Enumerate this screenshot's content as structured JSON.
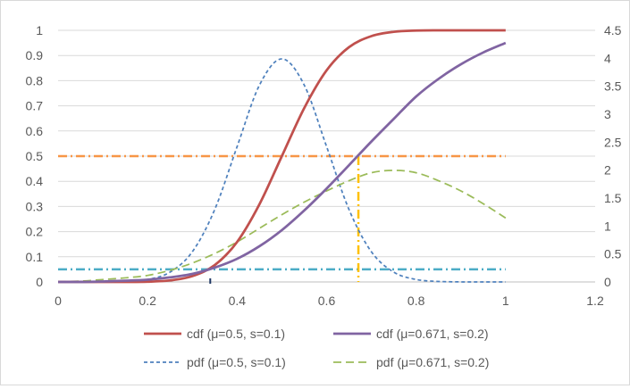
{
  "chart_data": {
    "type": "line",
    "title": "",
    "xlabel": "",
    "ylabel": "",
    "y2label": "",
    "xlim": [
      0,
      1.2
    ],
    "ylim": [
      0,
      1
    ],
    "y2lim": [
      0,
      4.5
    ],
    "xticks": [
      "0",
      "0.2",
      "0.4",
      "0.6",
      "0.8",
      "1",
      "1.2"
    ],
    "yticks": [
      "0",
      "0.1",
      "0.2",
      "0.3",
      "0.4",
      "0.5",
      "0.6",
      "0.7",
      "0.8",
      "0.9",
      "1"
    ],
    "y2ticks": [
      "0",
      "0.5",
      "1",
      "1.5",
      "2",
      "2.5",
      "3",
      "3.5",
      "4",
      "4.5"
    ],
    "grid": true,
    "legend_position": "bottom",
    "x": [
      0,
      0.05,
      0.1,
      0.15,
      0.2,
      0.25,
      0.3,
      0.35,
      0.4,
      0.45,
      0.5,
      0.55,
      0.6,
      0.65,
      0.7,
      0.75,
      0.8,
      0.85,
      0.9,
      0.95,
      1
    ],
    "series": [
      {
        "name": "cdf (μ=0.5, s=0.1)",
        "axis": "left",
        "color": "#c0504d",
        "style": "solid",
        "values": [
          0,
          0,
          0,
          0,
          0.001,
          0.006,
          0.023,
          0.067,
          0.159,
          0.309,
          0.5,
          0.691,
          0.841,
          0.933,
          0.977,
          0.994,
          0.999,
          1,
          1,
          1,
          1
        ]
      },
      {
        "name": "cdf (μ=0.671, s=0.2)",
        "axis": "left",
        "color": "#8064a2",
        "style": "solid",
        "values": [
          0,
          0,
          0.002,
          0.005,
          0.009,
          0.018,
          0.032,
          0.057,
          0.092,
          0.142,
          0.206,
          0.284,
          0.371,
          0.464,
          0.558,
          0.648,
          0.737,
          0.807,
          0.865,
          0.912,
          0.95
        ]
      },
      {
        "name": "pdf (μ=0.5, s=0.1)",
        "axis": "right",
        "color": "#4f81bd",
        "style": "short-dash",
        "values": [
          0,
          0,
          0.001,
          0.009,
          0.044,
          0.175,
          0.54,
          1.295,
          2.42,
          3.521,
          3.989,
          3.521,
          2.42,
          1.295,
          0.54,
          0.175,
          0.044,
          0.009,
          0.001,
          0,
          0
        ]
      },
      {
        "name": "pdf (μ=0.671, s=0.2)",
        "axis": "right",
        "color": "#9bbb59",
        "style": "long-dash",
        "values": [
          0.0071,
          0.0151,
          0.0429,
          0.0727,
          0.1166,
          0.2076,
          0.3383,
          0.5081,
          0.7154,
          0.9596,
          1.2032,
          1.4279,
          1.6279,
          1.8106,
          1.9534,
          1.9945,
          1.9534,
          1.8106,
          1.6279,
          1.3991,
          1.1426
        ]
      }
    ],
    "reference_lines": [
      {
        "kind": "horizontal",
        "axis": "left",
        "y": 0.5,
        "color": "#f79646",
        "style": "dash-dot"
      },
      {
        "kind": "horizontal",
        "axis": "left",
        "y": 0.05,
        "color": "#4bacc6",
        "style": "dash-dot"
      },
      {
        "kind": "vertical",
        "x": 0.671,
        "y_top": 0.5,
        "color": "#ffc000",
        "style": "dash-dot"
      },
      {
        "kind": "tick",
        "x": 0.34,
        "color": "#1f3864"
      }
    ],
    "legend": [
      {
        "label": "cdf (μ=0.5,  s=0.1)",
        "color": "#c0504d",
        "style": "solid"
      },
      {
        "label": "cdf (μ=0.671, s=0.2)",
        "color": "#8064a2",
        "style": "solid"
      },
      {
        "label": "pdf (μ=0.5,  s=0.1)",
        "color": "#4f81bd",
        "style": "short-dash"
      },
      {
        "label": "pdf (μ=0.671, s=0.2)",
        "color": "#9bbb59",
        "style": "long-dash"
      }
    ]
  }
}
